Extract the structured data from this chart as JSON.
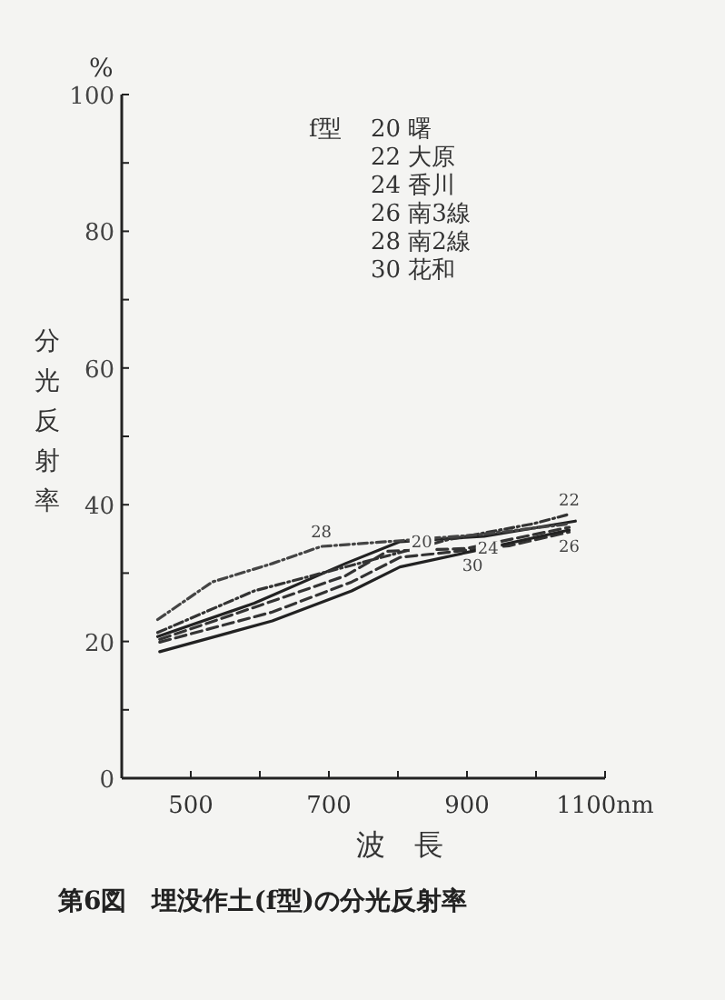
{
  "chart_data": {
    "type": "line",
    "title": "第6図　埋没作土(f型)の分光反射率",
    "xlabel": "波　長",
    "ylabel": "分光反射率",
    "grid": false,
    "xlim": [
      400,
      1100
    ],
    "xticks": [
      500,
      {
        "value": 600,
        "label": null
      },
      700,
      {
        "value": 800,
        "label": null
      },
      900,
      {
        "value": 1000,
        "label": null
      },
      {
        "value": 1100,
        "label": "1100nm"
      }
    ],
    "ylim": [
      0,
      100
    ],
    "yticks": [
      0,
      {
        "value": 10,
        "label": null
      },
      20,
      {
        "value": 30,
        "label": null
      },
      40,
      {
        "value": 50,
        "label": null
      },
      60,
      {
        "value": 70,
        "label": null
      },
      80,
      {
        "value": 90,
        "label": null
      },
      100
    ],
    "series": [
      {
        "color": "#222222",
        "line_style": "solid",
        "x": [
          452,
          592,
          724,
          803,
          925,
          1057
        ],
        "values": [
          20.7,
          25.6,
          31.4,
          34.6,
          35.4,
          37.6
        ]
      },
      {
        "color": "#333333",
        "line_style": "dotted",
        "x": [
          452,
          592,
          724,
          873,
          995,
          1048
        ],
        "values": [
          21.3,
          27.4,
          30.9,
          34.9,
          37.2,
          38.6
        ]
      },
      {
        "color": "#333333",
        "line_style": "dashed",
        "x": [
          455,
          601,
          724,
          785,
          899,
          1048
        ],
        "values": [
          20.3,
          25.3,
          29.6,
          33.2,
          33.6,
          36.7
        ]
      },
      {
        "color": "#333333",
        "line_style": "dashed",
        "x": [
          455,
          618,
          733,
          803,
          961,
          1048
        ],
        "values": [
          19.9,
          24.3,
          28.7,
          32.3,
          34.0,
          36.0
        ]
      },
      {
        "color": "#444444",
        "line_style": "dotted",
        "x": [
          452,
          531,
          618,
          689,
          785,
          916,
          1048
        ],
        "values": [
          23.2,
          28.7,
          31.4,
          33.9,
          34.6,
          35.6,
          37.2
        ]
      },
      {
        "color": "#222222",
        "line_style": "solid",
        "x": [
          455,
          618,
          733,
          803,
          908,
          1048
        ],
        "values": [
          18.5,
          23.0,
          27.4,
          30.9,
          33.2,
          36.3
        ]
      }
    ],
    "annotations": [
      "%",
      "f型",
      "20 曙",
      "22 大原",
      "24 香川",
      "26 南3線",
      "28 南2線",
      "30 花和",
      {
        "text": "20",
        "x": 803,
        "y": 34.6
      },
      {
        "text": "22",
        "x": 1048,
        "y": 38.6
      },
      {
        "text": "24",
        "x": 899,
        "y": 33.6
      },
      {
        "text": "26",
        "x": 1048,
        "y": 36.0
      },
      {
        "text": "28",
        "x": 689,
        "y": 33.9
      },
      {
        "text": "30",
        "x": 908,
        "y": 33.2
      }
    ]
  }
}
